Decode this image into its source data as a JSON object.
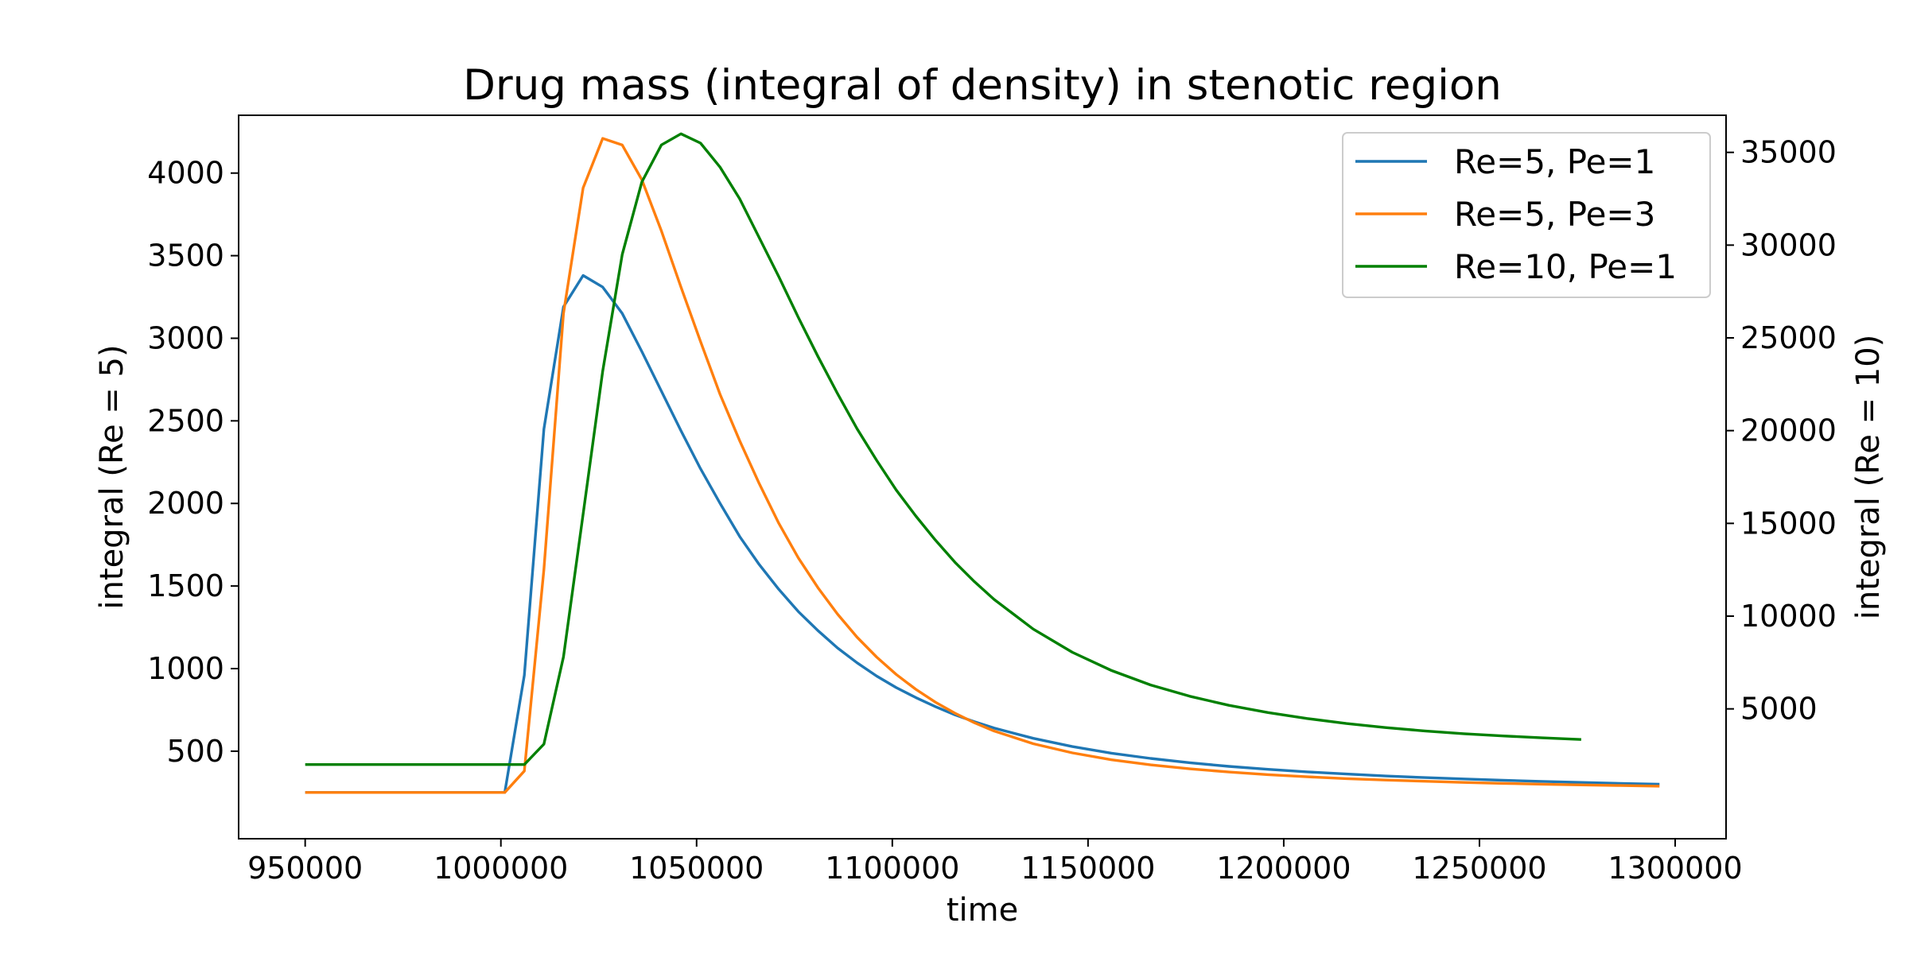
{
  "chart_data": {
    "type": "line",
    "title": "Drug mass (integral of density) in stenotic region",
    "xlabel": "time",
    "ylabel_left": "integral (Re = 5)",
    "ylabel_right": "integral (Re = 10)",
    "xlim": [
      933000,
      1313000
    ],
    "ylim_left": [
      -30,
      4350
    ],
    "ylim_right": [
      -2000,
      37000
    ],
    "x_ticks": [
      950000,
      1000000,
      1050000,
      1100000,
      1150000,
      1200000,
      1250000,
      1300000
    ],
    "y_ticks_left": [
      500,
      1000,
      1500,
      2000,
      2500,
      3000,
      3500,
      4000
    ],
    "y_ticks_right": [
      5000,
      10000,
      15000,
      20000,
      25000,
      30000,
      35000
    ],
    "grid": false,
    "legend_position": "top-right",
    "series": [
      {
        "name": "Re=5, Pe=1",
        "axis": "left",
        "color": "#1f77b4",
        "x": [
          950000,
          960000,
          970000,
          980000,
          990000,
          1000000,
          1001000,
          1006000,
          1011000,
          1016000,
          1021000,
          1026000,
          1031000,
          1036000,
          1041000,
          1046000,
          1051000,
          1056000,
          1061000,
          1066000,
          1071000,
          1076000,
          1081000,
          1086000,
          1091000,
          1096000,
          1101000,
          1106000,
          1111000,
          1116000,
          1121000,
          1126000,
          1136000,
          1146000,
          1156000,
          1166000,
          1176000,
          1186000,
          1196000,
          1206000,
          1216000,
          1226000,
          1236000,
          1246000,
          1256000,
          1266000,
          1276000,
          1286000,
          1296000
        ],
        "y": [
          250,
          250,
          250,
          250,
          250,
          250,
          250,
          960,
          2450,
          3190,
          3380,
          3310,
          3150,
          2920,
          2680,
          2440,
          2210,
          2000,
          1800,
          1630,
          1480,
          1345,
          1230,
          1125,
          1035,
          955,
          885,
          825,
          770,
          720,
          678,
          640,
          578,
          528,
          488,
          456,
          430,
          408,
          390,
          375,
          362,
          350,
          340,
          332,
          324,
          317,
          311,
          305,
          300
        ]
      },
      {
        "name": "Re=5, Pe=3",
        "axis": "left",
        "color": "#ff7f0e",
        "x": [
          950000,
          960000,
          970000,
          980000,
          990000,
          1000000,
          1001000,
          1006000,
          1011000,
          1016000,
          1021000,
          1026000,
          1031000,
          1036000,
          1041000,
          1046000,
          1051000,
          1056000,
          1061000,
          1066000,
          1071000,
          1076000,
          1081000,
          1086000,
          1091000,
          1096000,
          1101000,
          1106000,
          1111000,
          1116000,
          1121000,
          1126000,
          1136000,
          1146000,
          1156000,
          1166000,
          1176000,
          1186000,
          1196000,
          1206000,
          1216000,
          1226000,
          1236000,
          1246000,
          1256000,
          1266000,
          1276000,
          1286000,
          1296000
        ],
        "y": [
          250,
          250,
          250,
          250,
          250,
          250,
          250,
          380,
          1600,
          3150,
          3910,
          4210,
          4170,
          3960,
          3650,
          3310,
          2980,
          2660,
          2380,
          2120,
          1880,
          1670,
          1490,
          1330,
          1190,
          1070,
          965,
          875,
          797,
          730,
          672,
          622,
          545,
          490,
          448,
          417,
          393,
          374,
          358,
          345,
          334,
          325,
          318,
          311,
          305,
          300,
          296,
          292,
          288
        ]
      },
      {
        "name": "Re=10, Pe=1",
        "axis": "right",
        "color": "#008000",
        "x": [
          950000,
          960000,
          970000,
          980000,
          990000,
          1000000,
          1006000,
          1011000,
          1016000,
          1021000,
          1026000,
          1031000,
          1036000,
          1041000,
          1046000,
          1051000,
          1056000,
          1061000,
          1066000,
          1071000,
          1076000,
          1081000,
          1086000,
          1091000,
          1096000,
          1101000,
          1106000,
          1111000,
          1116000,
          1121000,
          1126000,
          1136000,
          1146000,
          1156000,
          1166000,
          1176000,
          1186000,
          1196000,
          1206000,
          1216000,
          1226000,
          1236000,
          1246000,
          1256000,
          1266000,
          1276000
        ],
        "y": [
          2000,
          2000,
          2000,
          2000,
          2000,
          2000,
          2000,
          3100,
          7800,
          15500,
          23200,
          29500,
          33400,
          35400,
          36000,
          35500,
          34200,
          32500,
          30400,
          28300,
          26100,
          24000,
          22000,
          20100,
          18400,
          16800,
          15400,
          14100,
          12900,
          11850,
          10900,
          9300,
          8050,
          7070,
          6290,
          5680,
          5190,
          4800,
          4480,
          4210,
          3990,
          3810,
          3660,
          3540,
          3440,
          3350
        ]
      }
    ]
  }
}
